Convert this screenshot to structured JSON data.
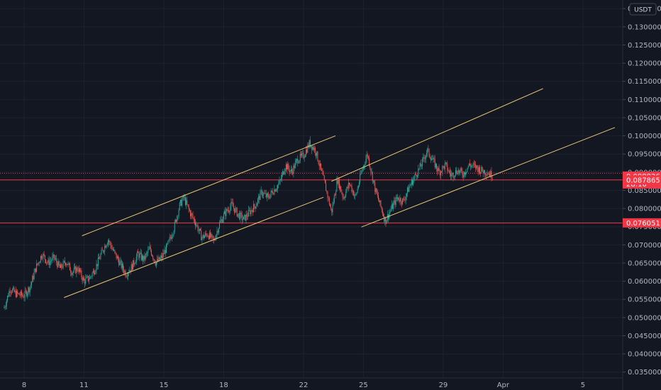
{
  "chart_data": {
    "type": "candlestick",
    "currency": "USDT",
    "yaxis": {
      "ticks": [
        "0.035000",
        "0.040000",
        "0.045000",
        "0.050000",
        "0.055000",
        "0.060000",
        "0.065000",
        "0.070000",
        "0.075000",
        "0.080000",
        "0.085000",
        "0.090000",
        "0.095000",
        "0.100000",
        "0.105000",
        "0.110000",
        "0.115000",
        "0.120000",
        "0.125000",
        "0.130000",
        "0.135000"
      ],
      "range": [
        0.0326,
        0.1366
      ]
    },
    "xaxis": {
      "ticks": [
        {
          "label": "8",
          "day": 8
        },
        {
          "label": "11",
          "day": 11
        },
        {
          "label": "15",
          "day": 15
        },
        {
          "label": "18",
          "day": 18
        },
        {
          "label": "22",
          "day": 22
        },
        {
          "label": "25",
          "day": 25
        },
        {
          "label": "29",
          "day": 29
        },
        {
          "label": "Apr",
          "day": 32
        },
        {
          "label": "5",
          "day": 36
        }
      ]
    },
    "price_tags": [
      {
        "label": "0.088826",
        "sub": "28:10",
        "value": 0.088826,
        "color": "#f23645"
      },
      {
        "label": "0.087865",
        "value": 0.087865,
        "color": "#f23645"
      },
      {
        "label": "0.076051",
        "value": 0.076051,
        "color": "#f23645"
      }
    ],
    "horizontal_lines": [
      {
        "value": 0.0897,
        "color": "#f23645",
        "style": "dotted"
      },
      {
        "value": 0.087865,
        "color": "#f23645",
        "style": "solid"
      },
      {
        "value": 0.076051,
        "color": "#f23645",
        "style": "solid"
      }
    ],
    "channel_lines": [
      {
        "from": [
          10.9,
          0.0725
        ],
        "to": [
          23.6,
          0.1
        ]
      },
      {
        "from": [
          10.0,
          0.0555
        ],
        "to": [
          23.0,
          0.0831
        ]
      },
      {
        "from": [
          23.4,
          0.0875
        ],
        "to": [
          34.0,
          0.113
        ]
      },
      {
        "from": [
          24.9,
          0.0749
        ],
        "to": [
          37.6,
          0.1023
        ]
      }
    ],
    "price_path": [
      [
        7.0,
        0.0527
      ],
      [
        7.3,
        0.058
      ],
      [
        7.6,
        0.0565
      ],
      [
        8.0,
        0.056
      ],
      [
        8.3,
        0.0585
      ],
      [
        8.6,
        0.0638
      ],
      [
        8.9,
        0.0675
      ],
      [
        9.2,
        0.065
      ],
      [
        9.5,
        0.0665
      ],
      [
        9.8,
        0.0635
      ],
      [
        10.1,
        0.0655
      ],
      [
        10.4,
        0.0625
      ],
      [
        10.7,
        0.0635
      ],
      [
        11.0,
        0.06
      ],
      [
        11.3,
        0.061
      ],
      [
        11.6,
        0.064
      ],
      [
        11.9,
        0.068
      ],
      [
        12.2,
        0.0715
      ],
      [
        12.5,
        0.068
      ],
      [
        12.8,
        0.065
      ],
      [
        13.1,
        0.062
      ],
      [
        13.4,
        0.064
      ],
      [
        13.7,
        0.0675
      ],
      [
        14.0,
        0.066
      ],
      [
        14.3,
        0.069
      ],
      [
        14.6,
        0.065
      ],
      [
        14.9,
        0.0665
      ],
      [
        15.2,
        0.07
      ],
      [
        15.5,
        0.0745
      ],
      [
        15.8,
        0.081
      ],
      [
        16.0,
        0.083
      ],
      [
        16.3,
        0.079
      ],
      [
        16.6,
        0.076
      ],
      [
        16.9,
        0.072
      ],
      [
        17.2,
        0.073
      ],
      [
        17.5,
        0.071
      ],
      [
        17.8,
        0.076
      ],
      [
        18.1,
        0.079
      ],
      [
        18.4,
        0.081
      ],
      [
        18.7,
        0.0785
      ],
      [
        19.0,
        0.077
      ],
      [
        19.3,
        0.079
      ],
      [
        19.6,
        0.081
      ],
      [
        19.9,
        0.0845
      ],
      [
        20.2,
        0.083
      ],
      [
        20.5,
        0.085
      ],
      [
        20.8,
        0.087
      ],
      [
        21.1,
        0.092
      ],
      [
        21.4,
        0.09
      ],
      [
        21.7,
        0.0935
      ],
      [
        22.0,
        0.0945
      ],
      [
        22.3,
        0.098
      ],
      [
        22.6,
        0.096
      ],
      [
        22.8,
        0.092
      ],
      [
        23.1,
        0.086
      ],
      [
        23.4,
        0.079
      ],
      [
        23.7,
        0.088
      ],
      [
        24.0,
        0.083
      ],
      [
        24.3,
        0.087
      ],
      [
        24.6,
        0.083
      ],
      [
        24.9,
        0.09
      ],
      [
        25.2,
        0.095
      ],
      [
        25.4,
        0.09
      ],
      [
        25.6,
        0.085
      ],
      [
        25.9,
        0.08
      ],
      [
        26.1,
        0.0765
      ],
      [
        26.4,
        0.08
      ],
      [
        26.7,
        0.083
      ],
      [
        27.0,
        0.082
      ],
      [
        27.3,
        0.086
      ],
      [
        27.6,
        0.089
      ],
      [
        27.9,
        0.092
      ],
      [
        28.2,
        0.096
      ],
      [
        28.5,
        0.093
      ],
      [
        28.8,
        0.09
      ],
      [
        29.1,
        0.092
      ],
      [
        29.4,
        0.089
      ],
      [
        29.7,
        0.0905
      ],
      [
        30.0,
        0.0895
      ],
      [
        30.3,
        0.092
      ],
      [
        30.6,
        0.0915
      ],
      [
        30.9,
        0.0905
      ],
      [
        31.2,
        0.09
      ],
      [
        31.5,
        0.089
      ]
    ]
  }
}
